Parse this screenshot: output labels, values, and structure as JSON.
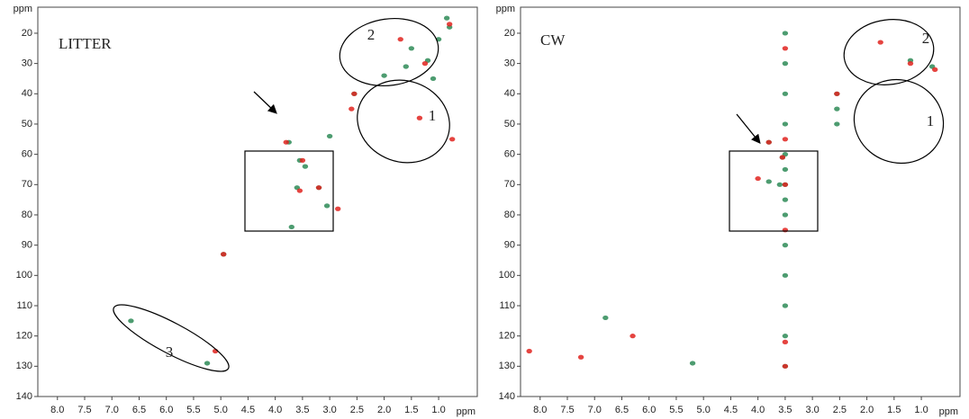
{
  "chart_data": [
    {
      "type": "scatter",
      "title": "LITTER",
      "x_label": "ppm",
      "y_label": "ppm",
      "xlim": [
        8.36,
        0.29
      ],
      "ylim": [
        140,
        11.4
      ],
      "xticks": [
        {
          "value": 8,
          "label": "8.0"
        },
        7.5,
        {
          "value": 7,
          "label": "7.0"
        },
        6.5,
        {
          "value": 6,
          "label": "6.0"
        },
        5.5,
        {
          "value": 5,
          "label": "5.0"
        },
        4.5,
        {
          "value": 4,
          "label": "4.0"
        },
        3.5,
        {
          "value": 3,
          "label": "3.0"
        },
        2.5,
        {
          "value": 2,
          "label": "2.0"
        },
        1.5,
        {
          "value": 1,
          "label": "1.0"
        }
      ],
      "yticks": [
        20,
        30,
        40,
        50,
        60,
        70,
        80,
        90,
        100,
        110,
        120,
        130,
        140
      ],
      "annotations": [
        "2",
        "1",
        "3"
      ],
      "series": [
        {
          "color": "#2e8b57",
          "x": [
            1.2,
            1.0,
            0.8,
            1.5,
            2.0,
            1.1,
            2.55,
            3.75,
            3.55,
            3.45,
            3.6,
            3.2,
            3.05,
            3.7,
            4.95,
            6.65,
            5.25,
            3.0,
            1.6,
            0.85
          ],
          "values": [
            29,
            22,
            18,
            25,
            34,
            35,
            40,
            56,
            62,
            64,
            71,
            71,
            77,
            84,
            93,
            115,
            129,
            54,
            31,
            15
          ]
        },
        {
          "color": "#e0231e",
          "x": [
            1.25,
            1.7,
            2.55,
            0.8,
            3.8,
            3.5,
            3.2,
            3.55,
            2.85,
            1.35,
            0.75,
            5.1,
            2.6,
            4.95
          ],
          "values": [
            30,
            22,
            40,
            17,
            56,
            62,
            71,
            72,
            78,
            48,
            55,
            125,
            45,
            93
          ]
        }
      ]
    },
    {
      "type": "scatter",
      "title": "CW",
      "x_label": "ppm",
      "y_label": "ppm",
      "xlim": [
        8.36,
        0.29
      ],
      "ylim": [
        140,
        11.4
      ],
      "xticks": [
        {
          "value": 8,
          "label": "8.0"
        },
        7.5,
        {
          "value": 7,
          "label": "7.0"
        },
        6.5,
        {
          "value": 6,
          "label": "6.0"
        },
        5.5,
        {
          "value": 5,
          "label": "5.0"
        },
        4.5,
        {
          "value": 4,
          "label": "4.0"
        },
        3.5,
        {
          "value": 3,
          "label": "3.0"
        },
        2.5,
        {
          "value": 2,
          "label": "2.0"
        },
        1.5,
        {
          "value": 1,
          "label": "1.0"
        }
      ],
      "yticks": [
        20,
        30,
        40,
        50,
        60,
        70,
        80,
        90,
        100,
        110,
        120,
        130,
        140
      ],
      "annotations": [
        "2",
        "1"
      ],
      "series": [
        {
          "color": "#2e8b57",
          "x": [
            3.5,
            3.5,
            3.5,
            3.5,
            3.5,
            3.5,
            3.5,
            3.5,
            3.5,
            3.5,
            3.5,
            3.5,
            3.5,
            3.5,
            2.55,
            2.55,
            2.55,
            3.55,
            3.6,
            3.8,
            6.8,
            5.2,
            1.2,
            0.8,
            3.8
          ],
          "values": [
            20,
            30,
            40,
            50,
            60,
            65,
            70,
            75,
            80,
            90,
            100,
            110,
            120,
            130,
            40,
            45,
            50,
            61,
            70,
            56,
            114,
            129,
            29,
            31,
            69
          ]
        },
        {
          "color": "#e0231e",
          "x": [
            1.2,
            2.55,
            3.5,
            3.55,
            3.8,
            4.0,
            7.25,
            8.2,
            3.5,
            3.5,
            3.5,
            3.5,
            3.5,
            1.75,
            6.3,
            0.75
          ],
          "values": [
            30,
            40,
            70,
            61,
            56,
            68,
            127,
            125,
            25,
            55,
            85,
            122,
            130,
            23,
            120,
            32
          ]
        }
      ]
    }
  ]
}
